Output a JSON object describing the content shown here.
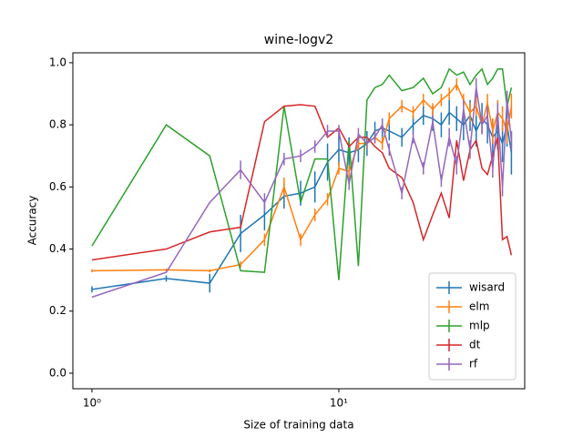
{
  "chart_data": {
    "type": "line",
    "title": "wine-logv2",
    "x_label": "Size of training data",
    "y_label": "Accuracy",
    "x": [
      1,
      2,
      3,
      4,
      5,
      6,
      7,
      8,
      9,
      10,
      11,
      12,
      13,
      14,
      15,
      16,
      18,
      20,
      22,
      24,
      26,
      28,
      30,
      32,
      34,
      36,
      38,
      40,
      42,
      44,
      46,
      48,
      50
    ],
    "xscale": "log",
    "xlim": [
      0.837,
      56.6
    ],
    "ylim": [
      -0.05,
      1.032
    ],
    "xticks": [
      {
        "value": 1,
        "label": "10⁰"
      },
      {
        "value": 10,
        "label": "10¹"
      }
    ],
    "yticks": [
      {
        "value": 0,
        "label": "0.0"
      },
      0.2,
      0.4,
      0.6,
      0.8,
      {
        "value": 1,
        "label": "1.0"
      }
    ],
    "grid": false,
    "legend": "lower right",
    "series": [
      {
        "name": "wisard",
        "color": "#1f77b4",
        "values": [
          0.27,
          0.305,
          0.29,
          0.45,
          0.51,
          0.57,
          0.58,
          0.6,
          0.68,
          0.72,
          0.71,
          0.72,
          0.74,
          0.78,
          0.79,
          0.78,
          0.76,
          0.8,
          0.83,
          0.82,
          0.8,
          0.84,
          0.82,
          0.8,
          0.83,
          0.78,
          0.82,
          0.8,
          0.76,
          0.78,
          0.74,
          0.8,
          0.71
        ],
        "errors": [
          0.01,
          0.01,
          0.03,
          0.06,
          0.05,
          0.04,
          0.04,
          0.05,
          0.06,
          0.05,
          0.05,
          0.04,
          0.04,
          0.03,
          0.03,
          0.03,
          0.03,
          0.03,
          0.03,
          0.04,
          0.04,
          0.04,
          0.04,
          0.05,
          0.05,
          0.05,
          0.05,
          0.06,
          0.06,
          0.06,
          0.06,
          0.07,
          0.07
        ]
      },
      {
        "name": "elm",
        "color": "#ff7f0e",
        "values": [
          0.33,
          0.333,
          0.33,
          0.35,
          0.43,
          0.6,
          0.43,
          0.51,
          0.56,
          0.66,
          0.65,
          0.74,
          0.74,
          0.76,
          0.74,
          0.82,
          0.86,
          0.84,
          0.88,
          0.85,
          0.88,
          0.9,
          0.93,
          0.88,
          0.84,
          0.86,
          0.8,
          0.87,
          0.78,
          0.84,
          0.82,
          0.78,
          0.86
        ],
        "errors": [
          0.005,
          0.005,
          0.005,
          0.01,
          0.02,
          0.03,
          0.02,
          0.02,
          0.02,
          0.02,
          0.02,
          0.02,
          0.02,
          0.02,
          0.02,
          0.02,
          0.02,
          0.02,
          0.02,
          0.02,
          0.02,
          0.02,
          0.02,
          0.02,
          0.03,
          0.03,
          0.03,
          0.03,
          0.04,
          0.04,
          0.04,
          0.04,
          0.04
        ]
      },
      {
        "name": "mlp",
        "color": "#2ca02c",
        "values": [
          0.41,
          0.8,
          0.7,
          0.33,
          0.325,
          0.86,
          0.55,
          0.69,
          0.69,
          0.3,
          0.75,
          0.345,
          0.88,
          0.92,
          0.93,
          0.96,
          0.91,
          0.92,
          0.95,
          0.9,
          0.92,
          0.98,
          0.96,
          0.97,
          0.93,
          0.96,
          0.98,
          0.93,
          0.95,
          0.98,
          0.98,
          0.86,
          0.92
        ],
        "errors": [
          0,
          0,
          0,
          0,
          0,
          0,
          0,
          0,
          0,
          0,
          0,
          0,
          0,
          0,
          0,
          0,
          0,
          0,
          0,
          0,
          0,
          0,
          0,
          0,
          0,
          0,
          0,
          0,
          0,
          0,
          0,
          0,
          0
        ]
      },
      {
        "name": "dt",
        "color": "#d62728",
        "values": [
          0.365,
          0.4,
          0.455,
          0.47,
          0.81,
          0.86,
          0.865,
          0.86,
          0.76,
          0.79,
          0.73,
          0.76,
          0.76,
          0.73,
          0.71,
          0.66,
          0.63,
          0.55,
          0.43,
          0.51,
          0.58,
          0.5,
          0.75,
          0.62,
          0.72,
          0.75,
          0.66,
          0.64,
          0.7,
          0.76,
          0.43,
          0.44,
          0.38
        ],
        "errors": [
          0,
          0,
          0,
          0,
          0,
          0,
          0,
          0,
          0,
          0,
          0,
          0,
          0,
          0,
          0,
          0,
          0,
          0,
          0,
          0,
          0,
          0,
          0,
          0,
          0,
          0,
          0,
          0,
          0,
          0,
          0,
          0,
          0
        ]
      },
      {
        "name": "rf",
        "color": "#9467bd",
        "values": [
          0.245,
          0.325,
          0.55,
          0.655,
          0.55,
          0.69,
          0.7,
          0.73,
          0.78,
          0.78,
          0.61,
          0.77,
          0.74,
          0.76,
          0.8,
          0.72,
          0.58,
          0.76,
          0.66,
          0.81,
          0.62,
          0.76,
          0.67,
          0.85,
          0.72,
          0.92,
          0.8,
          0.83,
          0.66,
          0.84,
          0.6,
          0.88,
          0.75
        ],
        "errors": [
          0,
          0,
          0,
          0.03,
          0.03,
          0.02,
          0.02,
          0.02,
          0.02,
          0.02,
          0.02,
          0.02,
          0.02,
          0.02,
          0.02,
          0.02,
          0.02,
          0.02,
          0.02,
          0.02,
          0.02,
          0.03,
          0.03,
          0.03,
          0.03,
          0.03,
          0.03,
          0.03,
          0.03,
          0.03,
          0.03,
          0.03,
          0.03
        ]
      }
    ]
  }
}
